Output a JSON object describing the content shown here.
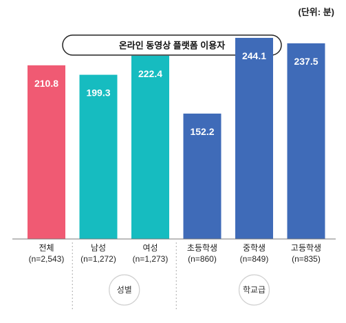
{
  "unit_note": "(단위: 분)",
  "chart_data": {
    "type": "bar",
    "title": "온라인 동영상 플랫폼 이용자",
    "categories": [
      "전체",
      "남성",
      "여성",
      "초등학생",
      "중학생",
      "고등학생"
    ],
    "sample_sizes": [
      "(n=2,543)",
      "(n=1,272)",
      "(n=1,273)",
      "(n=860)",
      "(n=849)",
      "(n=835)"
    ],
    "values": [
      210.8,
      199.3,
      222.4,
      152.2,
      244.1,
      237.5
    ],
    "value_labels": [
      "210.8",
      "199.3",
      "222.4",
      "152.2",
      "244.1",
      "237.5"
    ],
    "colors": [
      "#f05a73",
      "#16bcc0",
      "#16bcc0",
      "#3f6bb8",
      "#3f6bb8",
      "#3f6bb8"
    ],
    "groups": [
      {
        "label": "성별",
        "members": [
          "남성",
          "여성"
        ]
      },
      {
        "label": "학교급",
        "members": [
          "초등학생",
          "중학생",
          "고등학생"
        ]
      }
    ],
    "ylim": [
      0,
      270
    ],
    "grid": false,
    "legend": "none"
  }
}
